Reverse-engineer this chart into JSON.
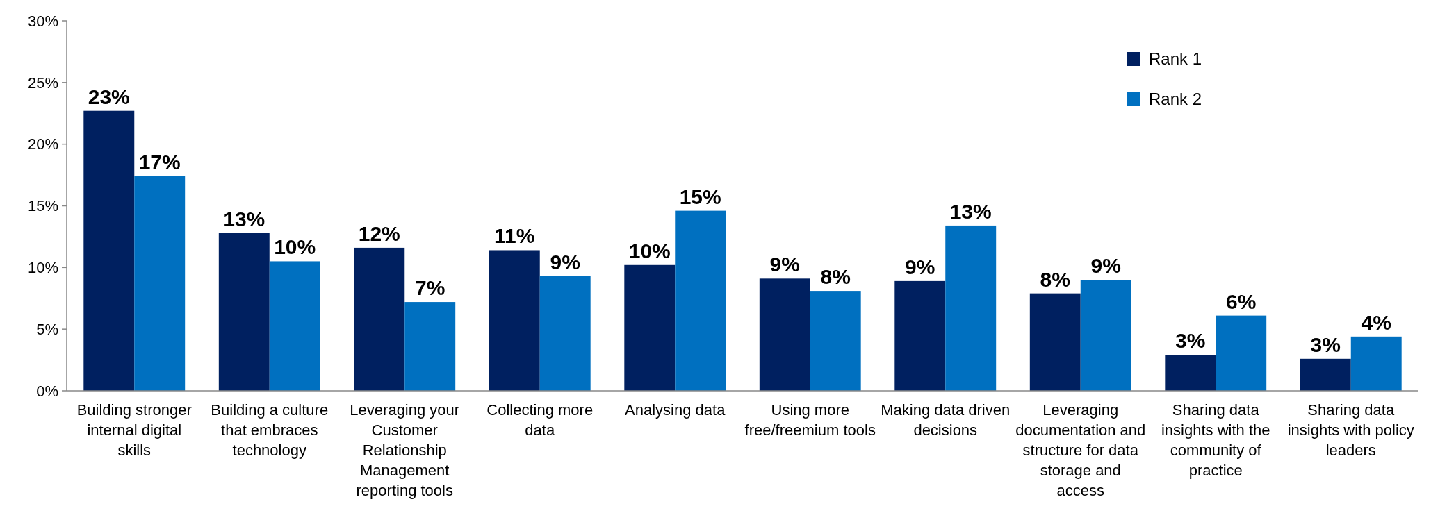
{
  "chart_data": {
    "type": "bar",
    "categories": [
      "Building stronger internal digital skills",
      "Building a culture that embraces technology",
      "Leveraging your Customer Relationship Management reporting tools",
      "Collecting more data",
      "Analysing data",
      "Using more free/freemium tools",
      "Making data driven decisions",
      "Leveraging documentation and structure for data storage and access",
      "Sharing data insights with the community of practice",
      "Sharing data insights with policy leaders"
    ],
    "series": [
      {
        "name": "Rank 1",
        "color": "#002060",
        "values": [
          22.7,
          12.8,
          11.6,
          11.4,
          10.2,
          9.1,
          8.9,
          7.9,
          2.9,
          2.6
        ],
        "value_labels": [
          "23%",
          "13%",
          "12%",
          "11%",
          "10%",
          "9%",
          "9%",
          "8%",
          "3%",
          "3%"
        ]
      },
      {
        "name": "Rank 2",
        "color": "#0070c0",
        "values": [
          17.4,
          10.5,
          7.2,
          9.3,
          14.6,
          8.1,
          13.4,
          9.0,
          6.1,
          4.4
        ],
        "value_labels": [
          "17%",
          "10%",
          "7%",
          "9%",
          "15%",
          "8%",
          "13%",
          "9%",
          "6%",
          "4%"
        ]
      }
    ],
    "ylim": [
      0,
      30
    ],
    "yticks": [
      {
        "value": 0,
        "label": "0%"
      },
      {
        "value": 5,
        "label": "5%"
      },
      {
        "value": 10,
        "label": "10%"
      },
      {
        "value": 15,
        "label": "15%"
      },
      {
        "value": 20,
        "label": "20%"
      },
      {
        "value": 25,
        "label": "25%"
      },
      {
        "value": 30,
        "label": "30%"
      }
    ],
    "grid": false,
    "legend": "top right"
  }
}
